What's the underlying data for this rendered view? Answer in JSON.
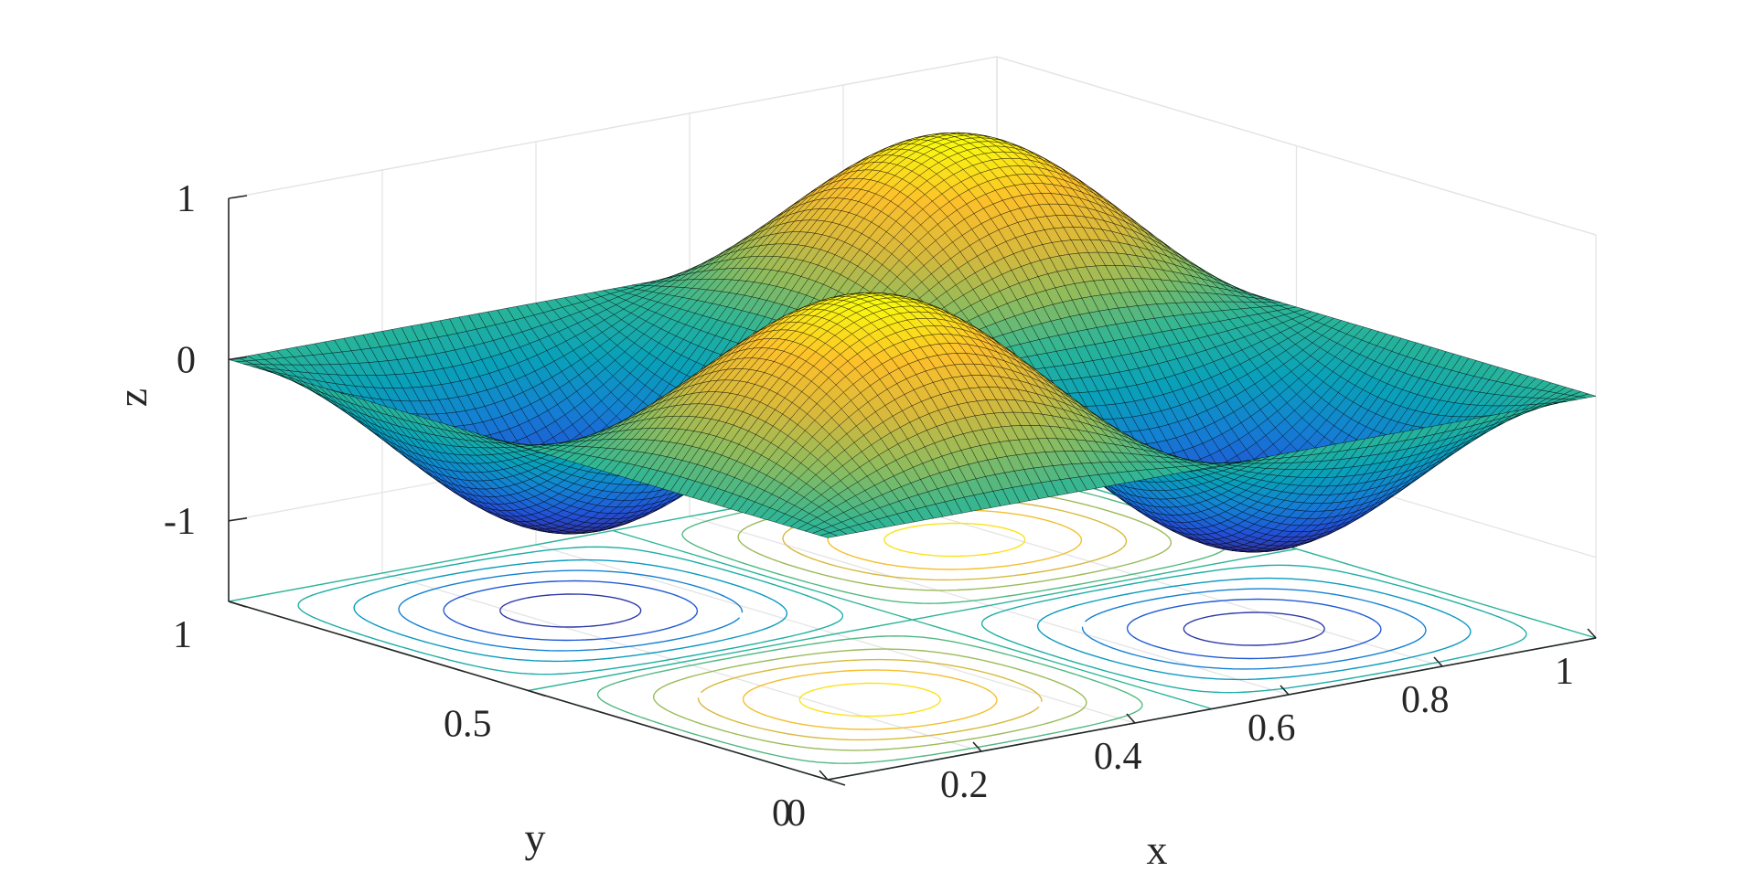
{
  "chart_data": {
    "type": "surface",
    "function": "z = sin(2*pi*x) * sin(2*pi*y)",
    "title": "",
    "xlabel": "x",
    "ylabel": "y",
    "zlabel": "z",
    "xlim": [
      0,
      1
    ],
    "ylim": [
      0,
      1
    ],
    "zlim": [
      -1.5,
      1
    ],
    "x_ticks": [
      {
        "value": 0,
        "label": "0"
      },
      {
        "value": 0.2,
        "label": "0.2"
      },
      {
        "value": 0.4,
        "label": "0.4"
      },
      {
        "value": 0.6,
        "label": "0.6"
      },
      {
        "value": 0.8,
        "label": "0.8"
      },
      {
        "value": 1,
        "label": "1"
      }
    ],
    "y_ticks": [
      {
        "value": 0,
        "label": "0"
      },
      {
        "value": 0.5,
        "label": "0.5"
      },
      {
        "value": 1,
        "label": "1"
      }
    ],
    "z_ticks": [
      {
        "value": -1,
        "label": "-1"
      },
      {
        "value": 0,
        "label": "0"
      },
      {
        "value": 1,
        "label": "1"
      }
    ],
    "contour_plane_z": -1.5,
    "contour_levels": [
      -0.9,
      -0.7,
      -0.5,
      -0.3,
      -0.1,
      0.1,
      0.3,
      0.5,
      0.7,
      0.9
    ],
    "extrema": [
      {
        "x": 0.25,
        "y": 0.25,
        "z": 1
      },
      {
        "x": 0.75,
        "y": 0.75,
        "z": 1
      },
      {
        "x": 0.25,
        "y": 0.75,
        "z": -1
      },
      {
        "x": 0.75,
        "y": 0.25,
        "z": -1
      }
    ],
    "colormap": "parula",
    "colormap_stops": [
      "#352a87",
      "#2250d6",
      "#1480d3",
      "#09a1b9",
      "#2ab598",
      "#8bbc5f",
      "#d7b93c",
      "#fcbf2c",
      "#f9fb0e"
    ],
    "edge_color": "#000000",
    "grid": true,
    "legend": "none"
  }
}
